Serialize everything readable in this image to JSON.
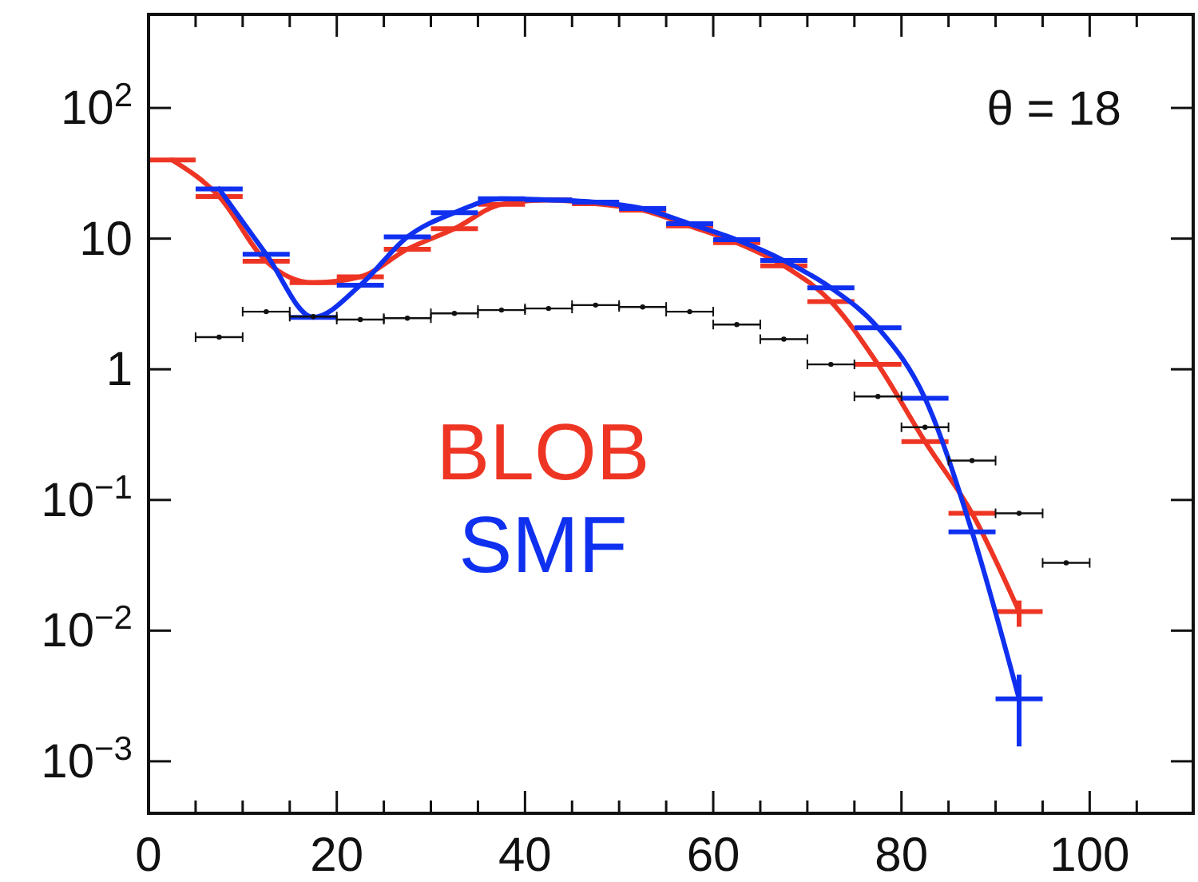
{
  "chart_data": {
    "type": "line",
    "log": "y",
    "xlim": [
      0,
      111
    ],
    "ylim": [
      0.0004,
      520
    ],
    "xticks": [
      0,
      {
        "value": 5,
        "label": null
      },
      20,
      {
        "value": 10,
        "label": null
      },
      {
        "value": 15,
        "label": null
      },
      {
        "value": 25,
        "label": null
      },
      {
        "value": 30,
        "label": null
      },
      {
        "value": 35,
        "label": null
      },
      40,
      {
        "value": 45,
        "label": null
      },
      {
        "value": 50,
        "label": null
      },
      {
        "value": 55,
        "label": null
      },
      60,
      {
        "value": 65,
        "label": null
      },
      {
        "value": 70,
        "label": null
      },
      {
        "value": 75,
        "label": null
      },
      80,
      {
        "value": 85,
        "label": null
      },
      {
        "value": 90,
        "label": null
      },
      {
        "value": 95,
        "label": null
      },
      100,
      {
        "value": 105,
        "label": null
      }
    ],
    "yticks": [
      {
        "value": 0.001,
        "label": "10$^{−3}$"
      },
      {
        "value": 0.01,
        "label": "10$^{−2}$"
      },
      {
        "value": 0.1,
        "label": "10$^{−1}$"
      },
      1,
      10,
      {
        "value": 100,
        "label": "10$^{2}$"
      }
    ],
    "annotations": [
      "θ = 18"
    ],
    "series": [
      {
        "type": "scatter",
        "color": "#111111",
        "x": [
          7.5,
          12.5,
          17.5,
          22.5,
          27.5,
          32.5,
          37.5,
          42.5,
          47.5,
          52.5,
          57.5,
          62.5,
          67.5,
          72.5,
          77.5,
          82.5,
          87.5,
          92.5,
          97.5
        ],
        "values": [
          1.76,
          2.76,
          2.53,
          2.4,
          2.46,
          2.68,
          2.84,
          2.92,
          3.1,
          3.0,
          2.76,
          2.2,
          1.7,
          1.09,
          0.62,
          0.36,
          0.2,
          0.079,
          0.033
        ],
        "xerrors": [
          2.5,
          2.5,
          2.5,
          2.5,
          2.5,
          2.5,
          2.5,
          2.5,
          2.5,
          2.5,
          2.5,
          2.5,
          2.5,
          2.5,
          2.5,
          2.5,
          2.5,
          2.5,
          2.5
        ]
      },
      {
        "name": "BLOB",
        "color": "#ee3524",
        "x": [
          2.5,
          7.5,
          12.5,
          17.5,
          22.5,
          27.5,
          32.5,
          37.5,
          42.5,
          47.5,
          52.5,
          57.5,
          62.5,
          67.5,
          72.5,
          77.5,
          82.5,
          87.5,
          92.5
        ],
        "values": [
          40,
          21,
          6.7,
          4.6,
          5.1,
          8.3,
          11.9,
          18.3,
          19.8,
          18.5,
          16.5,
          12.5,
          9.3,
          6.2,
          3.3,
          1.09,
          0.28,
          0.079,
          0.014
        ],
        "xerrors": [
          2.5,
          2.5,
          2.5,
          2.5,
          2.5,
          2.5,
          2.5,
          2.5,
          2.5,
          2.5,
          2.5,
          2.5,
          2.5,
          2.5,
          2.5,
          2.5,
          2.5,
          2.5,
          2.5
        ],
        "errors": [
          null,
          null,
          null,
          null,
          null,
          null,
          null,
          null,
          null,
          null,
          null,
          null,
          null,
          null,
          null,
          null,
          null,
          null,
          [
            0.0107,
            0.017
          ]
        ]
      },
      {
        "name": "SMF",
        "color": "#1030f0",
        "x": [
          7.5,
          12.5,
          17.5,
          22.5,
          27.5,
          32.5,
          37.5,
          42.5,
          47.5,
          52.5,
          57.5,
          62.5,
          67.5,
          72.5,
          77.5,
          82.5,
          87.5,
          92.5
        ],
        "values": [
          24,
          7.6,
          2.5,
          4.4,
          10.3,
          15.8,
          20.2,
          19.8,
          19,
          17,
          13,
          9.8,
          6.8,
          4.2,
          2.08,
          0.6,
          0.057,
          0.003
        ],
        "xerrors": [
          2.5,
          2.5,
          2.5,
          2.5,
          2.5,
          2.5,
          2.5,
          2.5,
          2.5,
          2.5,
          2.5,
          2.5,
          2.5,
          2.5,
          2.5,
          2.5,
          2.5,
          2.5
        ],
        "errors": [
          null,
          null,
          null,
          null,
          null,
          null,
          null,
          null,
          null,
          null,
          null,
          null,
          null,
          null,
          null,
          null,
          null,
          [
            0.0013,
            0.0046
          ]
        ]
      }
    ]
  }
}
